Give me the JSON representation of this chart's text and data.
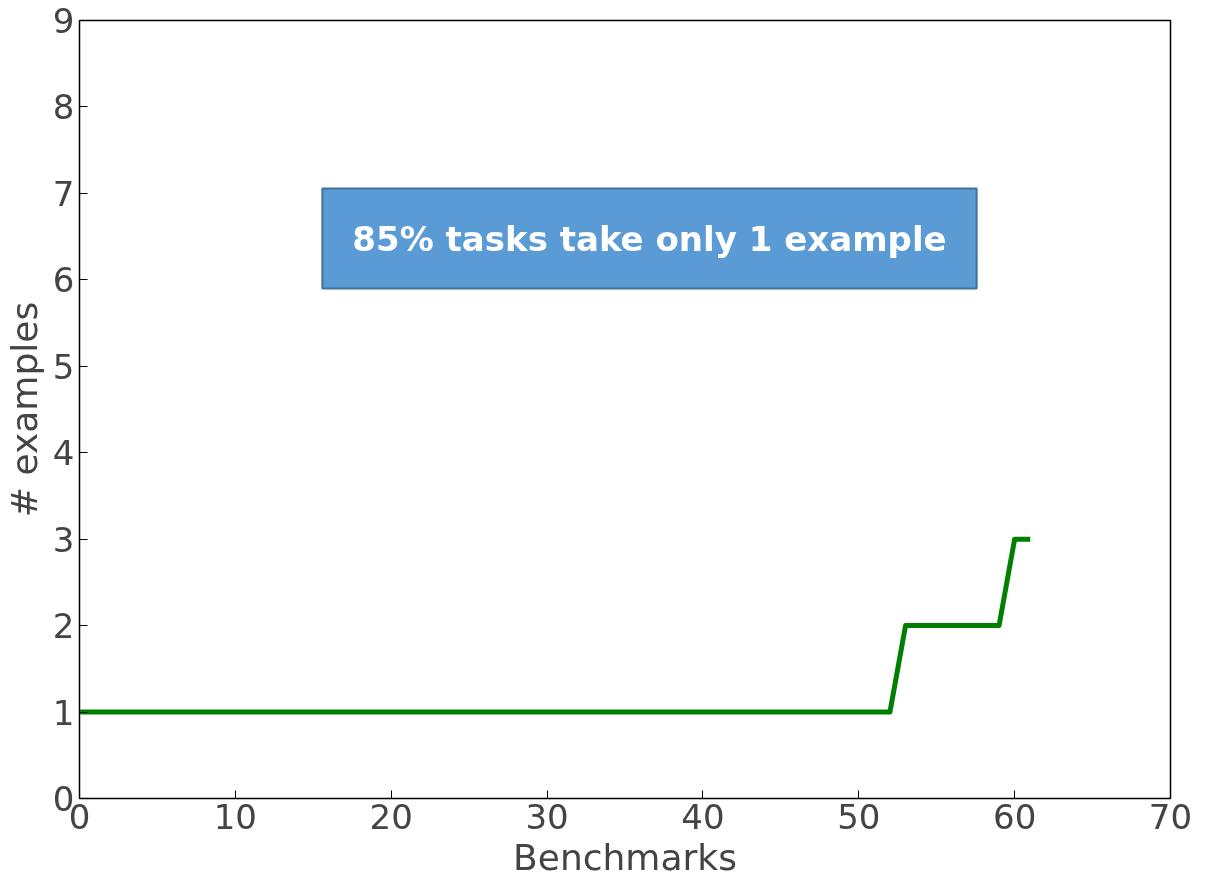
{
  "chart_data": {
    "type": "line",
    "xlabel": "Benchmarks",
    "ylabel": "# examples",
    "x": [
      0,
      52,
      53,
      59,
      60,
      61
    ],
    "series": [
      {
        "color": "#008000",
        "values": [
          1,
          1,
          2,
          2,
          3,
          3
        ]
      }
    ],
    "xlim": [
      0,
      70
    ],
    "xticks": [
      0,
      10,
      20,
      30,
      40,
      50,
      60,
      70
    ],
    "ylim": [
      0,
      9
    ],
    "yticks": [
      0,
      1,
      2,
      3,
      4,
      5,
      6,
      7,
      8,
      9
    ],
    "grid": false,
    "marker": "none",
    "line_style": "solid",
    "annotations": [
      "85% tasks take only 1 example"
    ]
  }
}
